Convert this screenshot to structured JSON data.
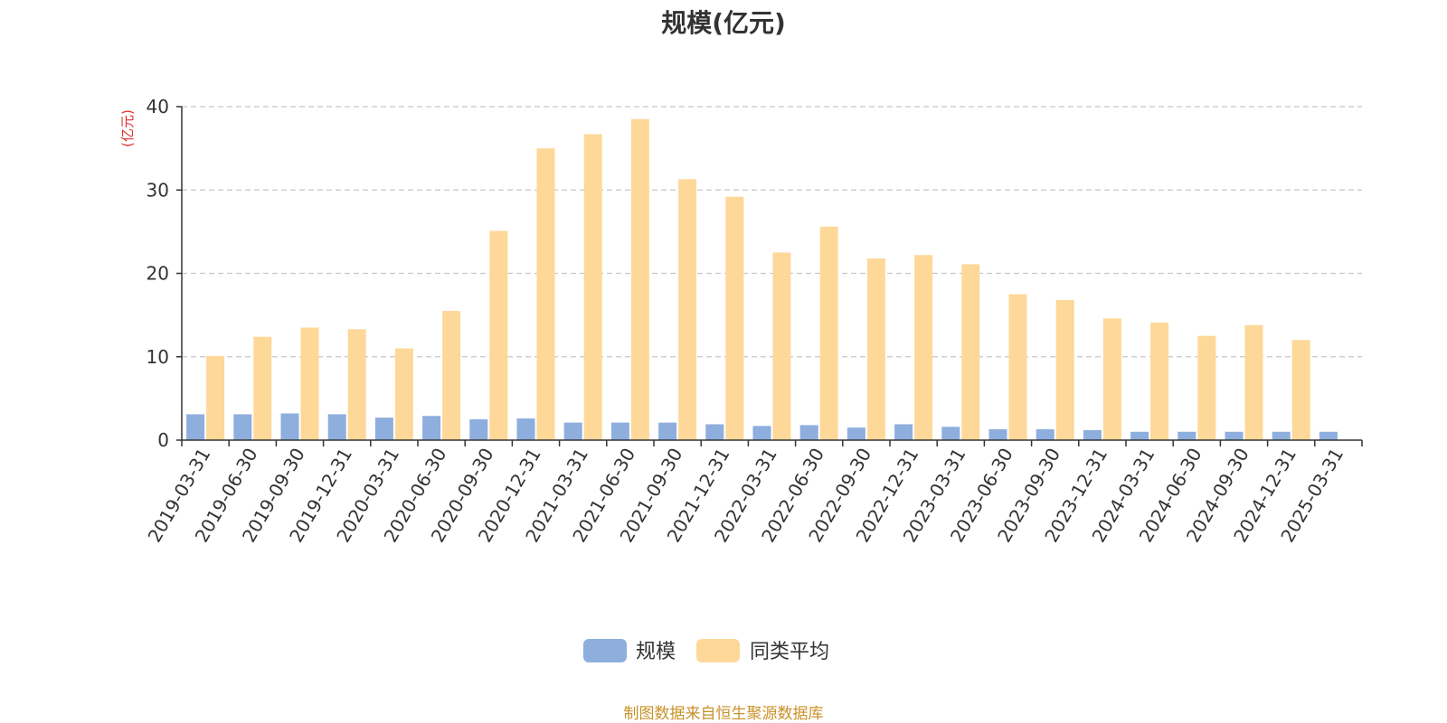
{
  "chart_data": {
    "type": "bar",
    "title": "规模(亿元)",
    "ylabel": "(亿元)",
    "xlabel": "",
    "ylim": [
      0,
      40
    ],
    "yticks": [
      0,
      10,
      20,
      30,
      40
    ],
    "grid": true,
    "legend_position": "bottom-center",
    "categories": [
      "2019-03-31",
      "2019-06-30",
      "2019-09-30",
      "2019-12-31",
      "2020-03-31",
      "2020-06-30",
      "2020-09-30",
      "2020-12-31",
      "2021-03-31",
      "2021-06-30",
      "2021-09-30",
      "2021-12-31",
      "2022-03-31",
      "2022-06-30",
      "2022-09-30",
      "2022-12-31",
      "2023-03-31",
      "2023-06-30",
      "2023-09-30",
      "2023-12-31",
      "2024-03-31",
      "2024-06-30",
      "2024-09-30",
      "2024-12-31",
      "2025-03-31"
    ],
    "series": [
      {
        "name": "规模",
        "color": "#8eaedd",
        "values": [
          3.1,
          3.1,
          3.2,
          3.1,
          2.7,
          2.9,
          2.5,
          2.6,
          2.1,
          2.1,
          2.1,
          1.9,
          1.7,
          1.8,
          1.5,
          1.9,
          1.6,
          1.3,
          1.3,
          1.2,
          1.0,
          1.0,
          1.0,
          1.0,
          1.0
        ]
      },
      {
        "name": "同类平均",
        "color": "#fdd899",
        "values": [
          10.1,
          12.4,
          13.5,
          13.3,
          11.0,
          15.5,
          25.1,
          35.0,
          36.7,
          38.5,
          31.3,
          29.2,
          22.5,
          25.6,
          21.8,
          22.2,
          21.1,
          17.5,
          16.8,
          14.6,
          14.1,
          12.5,
          13.8,
          12.0,
          null
        ]
      }
    ]
  },
  "footer": {
    "source": "制图数据来自恒生聚源数据库"
  }
}
